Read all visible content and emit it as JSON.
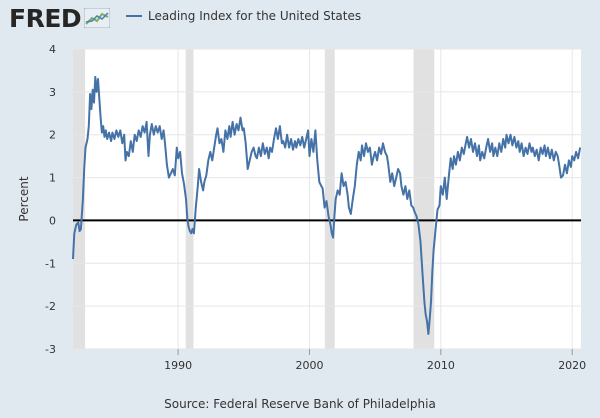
{
  "branding": {
    "logo_text": "FRED",
    "logo_icon": "chart-trend-icon"
  },
  "chart_data": {
    "type": "line",
    "title": "",
    "legend_position": "top-left",
    "legend": [
      "Leading Index for the United States"
    ],
    "ylabel": "Percent",
    "xlabel": "",
    "xlim": [
      1982.0,
      2020.67
    ],
    "ylim": [
      -3,
      4
    ],
    "y_ticks": [
      -3,
      -2,
      -1,
      0,
      1,
      2,
      3,
      4
    ],
    "x_ticks": [
      1990,
      2000,
      2010,
      2020
    ],
    "grid": true,
    "zero_line": true,
    "recessions": [
      [
        1982.0,
        1982.92
      ],
      [
        1990.58,
        1991.17
      ],
      [
        2001.17,
        2001.92
      ],
      [
        2007.92,
        2009.5
      ]
    ],
    "series": [
      {
        "name": "Leading Index for the United States",
        "color": "#4572a7",
        "points": [
          [
            1982.0,
            -0.9
          ],
          [
            1982.1,
            -0.3
          ],
          [
            1982.25,
            -0.1
          ],
          [
            1982.4,
            -0.05
          ],
          [
            1982.5,
            -0.25
          ],
          [
            1982.6,
            -0.2
          ],
          [
            1982.75,
            0.5
          ],
          [
            1982.85,
            1.2
          ],
          [
            1982.95,
            1.7
          ],
          [
            1983.1,
            1.9
          ],
          [
            1983.2,
            2.2
          ],
          [
            1983.3,
            2.95
          ],
          [
            1983.4,
            2.6
          ],
          [
            1983.5,
            3.05
          ],
          [
            1983.6,
            2.75
          ],
          [
            1983.7,
            3.35
          ],
          [
            1983.8,
            3.0
          ],
          [
            1983.9,
            3.3
          ],
          [
            1984.0,
            2.85
          ],
          [
            1984.1,
            2.4
          ],
          [
            1984.2,
            2.05
          ],
          [
            1984.3,
            2.2
          ],
          [
            1984.4,
            1.95
          ],
          [
            1984.5,
            2.1
          ],
          [
            1984.6,
            1.9
          ],
          [
            1984.75,
            2.05
          ],
          [
            1984.9,
            1.85
          ],
          [
            1985.0,
            2.05
          ],
          [
            1985.15,
            1.9
          ],
          [
            1985.3,
            2.1
          ],
          [
            1985.45,
            1.95
          ],
          [
            1985.6,
            2.1
          ],
          [
            1985.75,
            1.8
          ],
          [
            1985.9,
            2.0
          ],
          [
            1986.0,
            1.4
          ],
          [
            1986.1,
            1.6
          ],
          [
            1986.25,
            1.5
          ],
          [
            1986.4,
            1.85
          ],
          [
            1986.55,
            1.6
          ],
          [
            1986.7,
            2.0
          ],
          [
            1986.85,
            1.85
          ],
          [
            1987.0,
            2.1
          ],
          [
            1987.15,
            1.95
          ],
          [
            1987.3,
            2.2
          ],
          [
            1987.45,
            2.05
          ],
          [
            1987.6,
            2.3
          ],
          [
            1987.75,
            1.5
          ],
          [
            1987.85,
            2.0
          ],
          [
            1988.0,
            2.25
          ],
          [
            1988.15,
            2.0
          ],
          [
            1988.3,
            2.2
          ],
          [
            1988.45,
            2.05
          ],
          [
            1988.6,
            2.2
          ],
          [
            1988.75,
            1.9
          ],
          [
            1988.9,
            2.1
          ],
          [
            1989.0,
            1.8
          ],
          [
            1989.15,
            1.3
          ],
          [
            1989.3,
            1.0
          ],
          [
            1989.45,
            1.1
          ],
          [
            1989.6,
            1.2
          ],
          [
            1989.75,
            1.05
          ],
          [
            1989.9,
            1.7
          ],
          [
            1990.0,
            1.45
          ],
          [
            1990.15,
            1.6
          ],
          [
            1990.3,
            1.1
          ],
          [
            1990.45,
            0.85
          ],
          [
            1990.6,
            0.5
          ],
          [
            1990.7,
            0.05
          ],
          [
            1990.8,
            -0.15
          ],
          [
            1990.9,
            -0.25
          ],
          [
            1991.0,
            -0.3
          ],
          [
            1991.1,
            -0.2
          ],
          [
            1991.2,
            -0.3
          ],
          [
            1991.35,
            0.3
          ],
          [
            1991.5,
            0.8
          ],
          [
            1991.6,
            1.2
          ],
          [
            1991.75,
            0.9
          ],
          [
            1991.9,
            0.7
          ],
          [
            1992.0,
            0.9
          ],
          [
            1992.15,
            1.05
          ],
          [
            1992.3,
            1.4
          ],
          [
            1992.45,
            1.6
          ],
          [
            1992.6,
            1.4
          ],
          [
            1992.75,
            1.7
          ],
          [
            1992.9,
            2.0
          ],
          [
            1993.0,
            2.15
          ],
          [
            1993.15,
            1.8
          ],
          [
            1993.3,
            1.9
          ],
          [
            1993.45,
            1.6
          ],
          [
            1993.6,
            2.1
          ],
          [
            1993.75,
            1.9
          ],
          [
            1993.9,
            2.2
          ],
          [
            1994.0,
            1.95
          ],
          [
            1994.15,
            2.3
          ],
          [
            1994.3,
            2.0
          ],
          [
            1994.45,
            2.25
          ],
          [
            1994.6,
            2.1
          ],
          [
            1994.75,
            2.4
          ],
          [
            1994.9,
            2.1
          ],
          [
            1995.0,
            2.15
          ],
          [
            1995.15,
            1.8
          ],
          [
            1995.3,
            1.2
          ],
          [
            1995.45,
            1.4
          ],
          [
            1995.6,
            1.6
          ],
          [
            1995.75,
            1.7
          ],
          [
            1995.9,
            1.5
          ],
          [
            1996.0,
            1.45
          ],
          [
            1996.15,
            1.7
          ],
          [
            1996.3,
            1.5
          ],
          [
            1996.45,
            1.8
          ],
          [
            1996.6,
            1.55
          ],
          [
            1996.75,
            1.7
          ],
          [
            1996.9,
            1.45
          ],
          [
            1997.0,
            1.7
          ],
          [
            1997.15,
            1.6
          ],
          [
            1997.3,
            1.9
          ],
          [
            1997.45,
            2.15
          ],
          [
            1997.6,
            1.9
          ],
          [
            1997.75,
            2.2
          ],
          [
            1997.9,
            1.8
          ],
          [
            1998.0,
            1.85
          ],
          [
            1998.15,
            1.7
          ],
          [
            1998.3,
            2.0
          ],
          [
            1998.45,
            1.7
          ],
          [
            1998.6,
            1.9
          ],
          [
            1998.75,
            1.65
          ],
          [
            1998.9,
            1.85
          ],
          [
            1999.0,
            1.7
          ],
          [
            1999.15,
            1.9
          ],
          [
            1999.3,
            1.75
          ],
          [
            1999.45,
            1.95
          ],
          [
            1999.6,
            1.7
          ],
          [
            1999.75,
            1.9
          ],
          [
            1999.9,
            2.1
          ],
          [
            2000.0,
            1.5
          ],
          [
            2000.15,
            1.9
          ],
          [
            2000.3,
            1.6
          ],
          [
            2000.45,
            2.1
          ],
          [
            2000.6,
            1.4
          ],
          [
            2000.75,
            0.9
          ],
          [
            2000.9,
            0.8
          ],
          [
            2001.0,
            0.75
          ],
          [
            2001.15,
            0.3
          ],
          [
            2001.3,
            0.45
          ],
          [
            2001.45,
            0.1
          ],
          [
            2001.6,
            -0.1
          ],
          [
            2001.7,
            -0.3
          ],
          [
            2001.8,
            -0.4
          ],
          [
            2001.9,
            0.1
          ],
          [
            2002.0,
            0.5
          ],
          [
            2002.15,
            0.7
          ],
          [
            2002.3,
            0.6
          ],
          [
            2002.45,
            1.1
          ],
          [
            2002.6,
            0.8
          ],
          [
            2002.75,
            0.9
          ],
          [
            2002.9,
            0.6
          ],
          [
            2003.0,
            0.3
          ],
          [
            2003.15,
            0.15
          ],
          [
            2003.3,
            0.5
          ],
          [
            2003.45,
            0.8
          ],
          [
            2003.6,
            1.3
          ],
          [
            2003.75,
            1.6
          ],
          [
            2003.9,
            1.4
          ],
          [
            2004.0,
            1.75
          ],
          [
            2004.15,
            1.5
          ],
          [
            2004.3,
            1.8
          ],
          [
            2004.45,
            1.6
          ],
          [
            2004.6,
            1.7
          ],
          [
            2004.75,
            1.3
          ],
          [
            2004.9,
            1.5
          ],
          [
            2005.0,
            1.6
          ],
          [
            2005.15,
            1.4
          ],
          [
            2005.3,
            1.7
          ],
          [
            2005.45,
            1.55
          ],
          [
            2005.6,
            1.8
          ],
          [
            2005.75,
            1.6
          ],
          [
            2005.9,
            1.5
          ],
          [
            2006.0,
            1.3
          ],
          [
            2006.15,
            0.9
          ],
          [
            2006.3,
            1.1
          ],
          [
            2006.45,
            0.8
          ],
          [
            2006.6,
            1.0
          ],
          [
            2006.75,
            1.2
          ],
          [
            2006.9,
            1.1
          ],
          [
            2007.0,
            0.8
          ],
          [
            2007.15,
            0.6
          ],
          [
            2007.3,
            0.8
          ],
          [
            2007.45,
            0.5
          ],
          [
            2007.6,
            0.7
          ],
          [
            2007.75,
            0.35
          ],
          [
            2007.9,
            0.3
          ],
          [
            2008.0,
            0.2
          ],
          [
            2008.15,
            0.1
          ],
          [
            2008.3,
            -0.1
          ],
          [
            2008.45,
            -0.5
          ],
          [
            2008.6,
            -1.2
          ],
          [
            2008.75,
            -1.9
          ],
          [
            2008.85,
            -2.2
          ],
          [
            2008.95,
            -2.35
          ],
          [
            2009.05,
            -2.65
          ],
          [
            2009.15,
            -2.3
          ],
          [
            2009.25,
            -1.9
          ],
          [
            2009.35,
            -1.2
          ],
          [
            2009.45,
            -0.7
          ],
          [
            2009.6,
            -0.2
          ],
          [
            2009.75,
            0.25
          ],
          [
            2009.9,
            0.35
          ],
          [
            2010.0,
            0.8
          ],
          [
            2010.15,
            0.6
          ],
          [
            2010.3,
            1.0
          ],
          [
            2010.45,
            0.5
          ],
          [
            2010.6,
            1.0
          ],
          [
            2010.75,
            1.45
          ],
          [
            2010.9,
            1.2
          ],
          [
            2011.0,
            1.5
          ],
          [
            2011.15,
            1.3
          ],
          [
            2011.3,
            1.6
          ],
          [
            2011.45,
            1.4
          ],
          [
            2011.6,
            1.7
          ],
          [
            2011.75,
            1.55
          ],
          [
            2011.9,
            1.8
          ],
          [
            2012.0,
            1.95
          ],
          [
            2012.15,
            1.7
          ],
          [
            2012.3,
            1.9
          ],
          [
            2012.45,
            1.6
          ],
          [
            2012.6,
            1.8
          ],
          [
            2012.75,
            1.5
          ],
          [
            2012.9,
            1.75
          ],
          [
            2013.0,
            1.4
          ],
          [
            2013.15,
            1.6
          ],
          [
            2013.3,
            1.45
          ],
          [
            2013.45,
            1.7
          ],
          [
            2013.6,
            1.9
          ],
          [
            2013.75,
            1.6
          ],
          [
            2013.9,
            1.8
          ],
          [
            2014.0,
            1.5
          ],
          [
            2014.15,
            1.7
          ],
          [
            2014.3,
            1.5
          ],
          [
            2014.45,
            1.8
          ],
          [
            2014.6,
            1.6
          ],
          [
            2014.75,
            1.9
          ],
          [
            2014.9,
            1.7
          ],
          [
            2015.0,
            2.0
          ],
          [
            2015.15,
            1.8
          ],
          [
            2015.3,
            2.0
          ],
          [
            2015.45,
            1.75
          ],
          [
            2015.6,
            1.95
          ],
          [
            2015.75,
            1.7
          ],
          [
            2015.9,
            1.85
          ],
          [
            2016.0,
            1.6
          ],
          [
            2016.15,
            1.8
          ],
          [
            2016.3,
            1.5
          ],
          [
            2016.45,
            1.7
          ],
          [
            2016.6,
            1.55
          ],
          [
            2016.75,
            1.8
          ],
          [
            2016.9,
            1.6
          ],
          [
            2017.0,
            1.7
          ],
          [
            2017.15,
            1.5
          ],
          [
            2017.3,
            1.65
          ],
          [
            2017.45,
            1.4
          ],
          [
            2017.6,
            1.7
          ],
          [
            2017.75,
            1.55
          ],
          [
            2017.9,
            1.75
          ],
          [
            2018.0,
            1.5
          ],
          [
            2018.15,
            1.7
          ],
          [
            2018.3,
            1.45
          ],
          [
            2018.45,
            1.65
          ],
          [
            2018.6,
            1.4
          ],
          [
            2018.75,
            1.6
          ],
          [
            2018.9,
            1.5
          ],
          [
            2019.0,
            1.3
          ],
          [
            2019.15,
            1.0
          ],
          [
            2019.3,
            1.05
          ],
          [
            2019.45,
            1.3
          ],
          [
            2019.6,
            1.1
          ],
          [
            2019.75,
            1.4
          ],
          [
            2019.9,
            1.25
          ],
          [
            2020.0,
            1.5
          ],
          [
            2020.15,
            1.4
          ],
          [
            2020.3,
            1.6
          ],
          [
            2020.45,
            1.45
          ],
          [
            2020.6,
            1.7
          ]
        ]
      }
    ]
  },
  "source": "Source: Federal Reserve Bank of Philadelphia"
}
